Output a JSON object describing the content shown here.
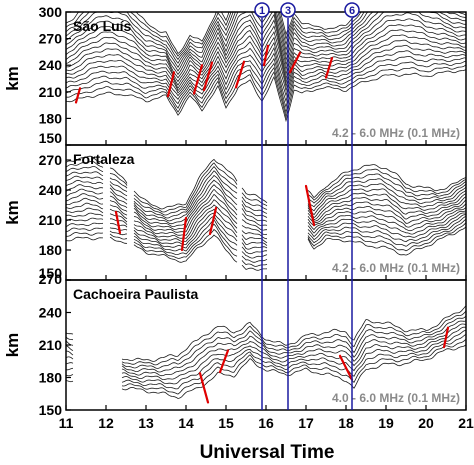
{
  "chart_data": {
    "type": "line",
    "xlabel": "Universal Time",
    "xlim": [
      11,
      21
    ],
    "x_ticks": [
      "11",
      "12",
      "13",
      "14",
      "15",
      "16",
      "17",
      "18",
      "19",
      "20",
      "21"
    ],
    "colors": {
      "traces": "#1a1a1a",
      "highlight": "#e00000",
      "markers": "#1a1aa0",
      "annotation": "#8a8a8a"
    },
    "markers": [
      {
        "label": "1",
        "x": 15.9
      },
      {
        "label": "3",
        "x": 16.55
      },
      {
        "label": "6",
        "x": 18.15
      }
    ],
    "panels": [
      {
        "station": "São Luís",
        "ylabel": "km",
        "ylim": [
          150,
          300
        ],
        "y_ticks": [
          "150",
          "180",
          "210",
          "240",
          "270",
          "300"
        ],
        "frequency_note": "4.2 - 6.0 MHz (0.1 MHz)",
        "base_height": [
          [
            11.2,
            200
          ],
          [
            11.6,
            205
          ],
          [
            12.0,
            208
          ],
          [
            12.5,
            207
          ],
          [
            13.0,
            200
          ],
          [
            13.5,
            205
          ],
          [
            13.8,
            185
          ],
          [
            14.1,
            205
          ],
          [
            14.4,
            190
          ],
          [
            14.8,
            215
          ],
          [
            15.0,
            192
          ],
          [
            15.3,
            215
          ],
          [
            15.6,
            222
          ],
          [
            15.9,
            200
          ],
          [
            16.2,
            225
          ],
          [
            16.5,
            178
          ],
          [
            16.7,
            212
          ],
          [
            16.9,
            208
          ],
          [
            17.4,
            215
          ],
          [
            18.0,
            212
          ],
          [
            18.5,
            222
          ],
          [
            19.0,
            228
          ],
          [
            19.5,
            230
          ],
          [
            20.0,
            228
          ],
          [
            20.5,
            232
          ],
          [
            21.0,
            235
          ]
        ],
        "trace_count": 19,
        "trace_spacing_km": 5.0,
        "gaps": [],
        "highlights": [
          [
            11.25,
            198,
            11.35,
            214
          ],
          [
            13.55,
            205,
            13.7,
            232
          ],
          [
            14.2,
            208,
            14.4,
            240
          ],
          [
            14.45,
            212,
            14.65,
            243
          ],
          [
            15.25,
            215,
            15.45,
            244
          ],
          [
            15.95,
            240,
            16.05,
            262
          ],
          [
            16.6,
            232,
            16.85,
            254
          ],
          [
            17.5,
            226,
            17.65,
            248
          ]
        ]
      },
      {
        "station": "Fortaleza",
        "ylabel": "km",
        "ylim": [
          150,
          285
        ],
        "y_ticks": [
          "150",
          "180",
          "210",
          "240",
          "270"
        ],
        "frequency_note": "4.2 - 6.0 MHz (0.1 MHz)",
        "base_height": [
          [
            11.0,
            190
          ],
          [
            11.5,
            192
          ],
          [
            12.0,
            192
          ],
          [
            12.5,
            188
          ],
          [
            13.0,
            178
          ],
          [
            13.5,
            173
          ],
          [
            14.0,
            168
          ],
          [
            14.3,
            182
          ],
          [
            14.7,
            195
          ],
          [
            15.0,
            180
          ],
          [
            15.5,
            160
          ],
          [
            16.0,
            162
          ],
          [
            16.4,
            164
          ],
          [
            16.8,
            175
          ],
          [
            17.0,
            193
          ],
          [
            17.2,
            182
          ],
          [
            17.5,
            190
          ],
          [
            18.0,
            190
          ],
          [
            18.5,
            185
          ],
          [
            19.0,
            182
          ],
          [
            19.5,
            175
          ],
          [
            20.0,
            184
          ],
          [
            20.5,
            193
          ],
          [
            21.0,
            203
          ]
        ],
        "trace_count": 18,
        "trace_spacing_km": 3.8,
        "gaps": [
          [
            11.95,
            12.1
          ],
          [
            12.55,
            12.7
          ],
          [
            15.3,
            15.4
          ],
          [
            16.05,
            17.05
          ]
        ],
        "highlights": [
          [
            12.25,
            218,
            12.35,
            197
          ],
          [
            14.0,
            212,
            13.9,
            180
          ],
          [
            14.75,
            222,
            14.6,
            196
          ],
          [
            17.0,
            244,
            17.2,
            205
          ]
        ]
      },
      {
        "station": "Cachoeira Paulista",
        "ylabel": "km",
        "ylim": [
          150,
          270
        ],
        "y_ticks": [
          "150",
          "180",
          "210",
          "240",
          "270"
        ],
        "frequency_note": "4.0 - 6.0 MHz (0.1 MHz)",
        "base_height": [
          [
            11.0,
            178
          ],
          [
            12.0,
            172
          ],
          [
            13.0,
            168
          ],
          [
            13.8,
            162
          ],
          [
            14.3,
            170
          ],
          [
            14.8,
            183
          ],
          [
            15.2,
            182
          ],
          [
            15.6,
            196
          ],
          [
            16.0,
            187
          ],
          [
            16.5,
            183
          ],
          [
            17.0,
            187
          ],
          [
            17.5,
            183
          ],
          [
            18.0,
            178
          ],
          [
            18.2,
            170
          ],
          [
            18.5,
            188
          ],
          [
            19.0,
            192
          ],
          [
            19.5,
            193
          ],
          [
            20.0,
            197
          ],
          [
            20.5,
            205
          ],
          [
            21.0,
            210
          ]
        ],
        "trace_count": 10,
        "trace_spacing_km": 4.0,
        "gaps": [
          [
            11.2,
            12.4
          ]
        ],
        "highlights": [
          [
            14.55,
            157,
            14.35,
            184
          ],
          [
            14.85,
            185,
            15.05,
            205
          ],
          [
            18.15,
            178,
            17.85,
            200
          ],
          [
            20.45,
            208,
            20.55,
            226
          ]
        ]
      }
    ]
  }
}
